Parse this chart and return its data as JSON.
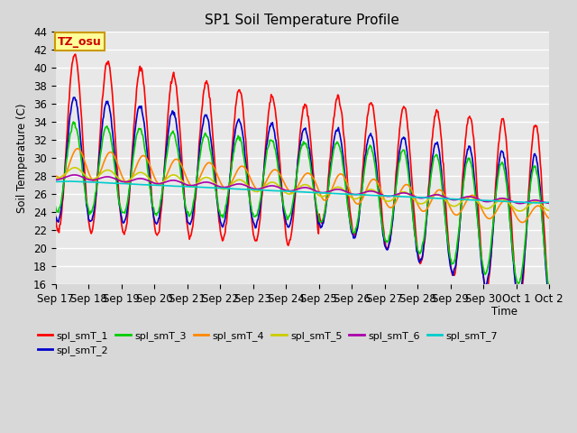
{
  "title": "SP1 Soil Temperature Profile",
  "xlabel": "Time",
  "ylabel": "Soil Temperature (C)",
  "ylim": [
    16,
    44
  ],
  "yticks": [
    16,
    18,
    20,
    22,
    24,
    26,
    28,
    30,
    32,
    34,
    36,
    38,
    40,
    42,
    44
  ],
  "tz_label": "TZ_osu",
  "tz_bg": "#ffff99",
  "tz_border": "#cc9900",
  "background_color": "#d8d8d8",
  "plot_bg": "#e8e8e8",
  "grid_color": "#ffffff",
  "series_colors": {
    "spl_smT_1": "#ff0000",
    "spl_smT_2": "#0000cc",
    "spl_smT_3": "#00cc00",
    "spl_smT_4": "#ff8800",
    "spl_smT_5": "#cccc00",
    "spl_smT_6": "#aa00aa",
    "spl_smT_7": "#00cccc"
  },
  "x_tick_labels": [
    "Sep 17",
    "Sep 18",
    "Sep 19",
    "Sep 20",
    "Sep 21",
    "Sep 22",
    "Sep 23",
    "Sep 24",
    "Sep 25",
    "Sep 26",
    "Sep 27",
    "Sep 28",
    "Sep 29",
    "Sep 30",
    "Oct 1",
    "Oct 2"
  ],
  "legend_entries": [
    "spl_smT_1",
    "spl_smT_2",
    "spl_smT_3",
    "spl_smT_4",
    "spl_smT_5",
    "spl_smT_6",
    "spl_smT_7"
  ]
}
